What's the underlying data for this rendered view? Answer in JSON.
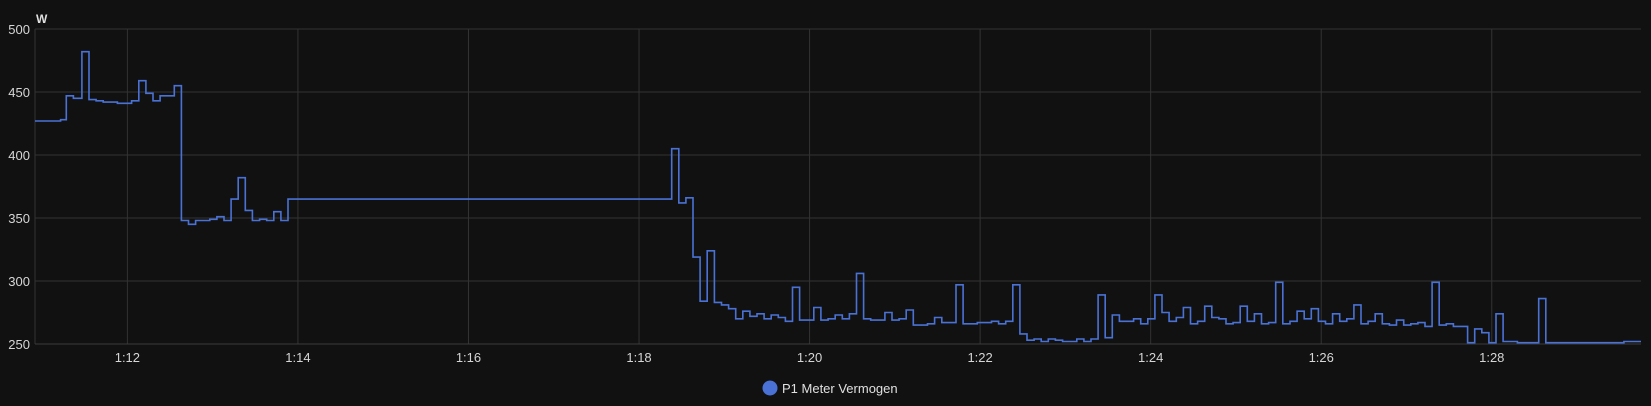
{
  "chart_data": {
    "type": "line",
    "step": true,
    "ylabel": "W",
    "ylim": [
      250,
      500
    ],
    "yticks": [
      250,
      300,
      350,
      400,
      450,
      500
    ],
    "xlim": [
      "1:10:55",
      "1:29:45"
    ],
    "xticks": [
      "1:12",
      "1:14",
      "1:16",
      "1:18",
      "1:20",
      "1:22",
      "1:24",
      "1:26",
      "1:28"
    ],
    "grid": true,
    "legend_position": "bottom-center",
    "colors": {
      "background": "#111111",
      "grid": "#333333",
      "series": "#4a72d6",
      "text": "#d6d6d6"
    },
    "series": [
      {
        "name": "P1 Meter Vermogen",
        "color": "#4a72d6",
        "x": [
          "1:10:55",
          "1:11:13",
          "1:11:17",
          "1:11:22",
          "1:11:28",
          "1:11:33",
          "1:11:38",
          "1:11:43",
          "1:11:48",
          "1:11:53",
          "1:11:58",
          "1:12:03",
          "1:12:08",
          "1:12:13",
          "1:12:18",
          "1:12:23",
          "1:12:28",
          "1:12:33",
          "1:12:38",
          "1:12:43",
          "1:12:48",
          "1:12:53",
          "1:12:58",
          "1:13:03",
          "1:13:08",
          "1:13:13",
          "1:13:18",
          "1:13:23",
          "1:13:28",
          "1:13:33",
          "1:13:38",
          "1:13:43",
          "1:13:48",
          "1:13:53",
          "1:13:58",
          "1:18:23",
          "1:18:28",
          "1:18:33",
          "1:18:38",
          "1:18:43",
          "1:18:48",
          "1:18:53",
          "1:18:58",
          "1:19:03",
          "1:19:08",
          "1:19:13",
          "1:19:18",
          "1:19:23",
          "1:19:28",
          "1:19:33",
          "1:19:38",
          "1:19:43",
          "1:19:48",
          "1:19:53",
          "1:19:58",
          "1:20:03",
          "1:20:08",
          "1:20:13",
          "1:20:18",
          "1:20:23",
          "1:20:28",
          "1:20:33",
          "1:20:38",
          "1:20:43",
          "1:20:48",
          "1:20:53",
          "1:20:58",
          "1:21:03",
          "1:21:08",
          "1:21:13",
          "1:21:18",
          "1:21:23",
          "1:21:28",
          "1:21:33",
          "1:21:38",
          "1:21:43",
          "1:21:48",
          "1:21:53",
          "1:21:58",
          "1:22:03",
          "1:22:08",
          "1:22:13",
          "1:22:18",
          "1:22:23",
          "1:22:28",
          "1:22:33",
          "1:22:38",
          "1:22:43",
          "1:22:48",
          "1:22:53",
          "1:22:58",
          "1:23:03",
          "1:23:08",
          "1:23:13",
          "1:23:18",
          "1:23:23",
          "1:23:28",
          "1:23:33",
          "1:23:38",
          "1:23:43",
          "1:23:48",
          "1:23:53",
          "1:23:58",
          "1:24:03",
          "1:24:08",
          "1:24:13",
          "1:24:18",
          "1:24:23",
          "1:24:28",
          "1:24:33",
          "1:24:38",
          "1:24:43",
          "1:24:48",
          "1:24:53",
          "1:24:58",
          "1:25:03",
          "1:25:08",
          "1:25:13",
          "1:25:18",
          "1:25:23",
          "1:25:28",
          "1:25:33",
          "1:25:38",
          "1:25:43",
          "1:25:48",
          "1:25:53",
          "1:25:58",
          "1:26:03",
          "1:26:08",
          "1:26:13",
          "1:26:18",
          "1:26:23",
          "1:26:28",
          "1:26:33",
          "1:26:38",
          "1:26:43",
          "1:26:48",
          "1:26:53",
          "1:26:58",
          "1:27:03",
          "1:27:08",
          "1:27:13",
          "1:27:18",
          "1:27:23",
          "1:27:28",
          "1:27:33",
          "1:27:38",
          "1:27:43",
          "1:27:48",
          "1:27:53",
          "1:27:58",
          "1:28:03",
          "1:28:08",
          "1:28:13",
          "1:28:18",
          "1:28:23",
          "1:28:28",
          "1:28:33",
          "1:28:38",
          "1:28:43",
          "1:28:48",
          "1:28:53",
          "1:28:58",
          "1:29:03",
          "1:29:08",
          "1:29:13",
          "1:29:18",
          "1:29:23",
          "1:29:28",
          "1:29:33",
          "1:29:45"
        ],
        "y": [
          427,
          428,
          447,
          445,
          482,
          444,
          443,
          442,
          442,
          441,
          441,
          443,
          459,
          449,
          443,
          447,
          447,
          455,
          348,
          345,
          348,
          348,
          349,
          351,
          348,
          365,
          382,
          356,
          348,
          349,
          348,
          355,
          348,
          365,
          365,
          405,
          362,
          366,
          319,
          284,
          324,
          283,
          281,
          278,
          270,
          276,
          272,
          274,
          270,
          273,
          271,
          268,
          295,
          269,
          269,
          279,
          269,
          270,
          273,
          270,
          274,
          306,
          270,
          269,
          269,
          275,
          269,
          270,
          277,
          265,
          265,
          266,
          271,
          267,
          267,
          297,
          266,
          266,
          267,
          267,
          268,
          266,
          268,
          297,
          258,
          253,
          254,
          252,
          254,
          253,
          252,
          252,
          254,
          252,
          254,
          289,
          255,
          273,
          268,
          268,
          270,
          266,
          270,
          289,
          275,
          268,
          271,
          279,
          266,
          268,
          280,
          271,
          270,
          266,
          267,
          280,
          268,
          274,
          266,
          267,
          299,
          266,
          268,
          276,
          270,
          278,
          268,
          266,
          274,
          268,
          270,
          281,
          266,
          268,
          274,
          266,
          265,
          269,
          265,
          266,
          267,
          264,
          299,
          265,
          266,
          264,
          264,
          251,
          262,
          259,
          251,
          274,
          252,
          252,
          251,
          251,
          251,
          286,
          251,
          251,
          251,
          251,
          251,
          251,
          251,
          251,
          251,
          251,
          251,
          252,
          252
        ]
      }
    ]
  },
  "axis": {
    "unit": "W"
  },
  "legend": {
    "label": "P1 Meter Vermogen"
  }
}
